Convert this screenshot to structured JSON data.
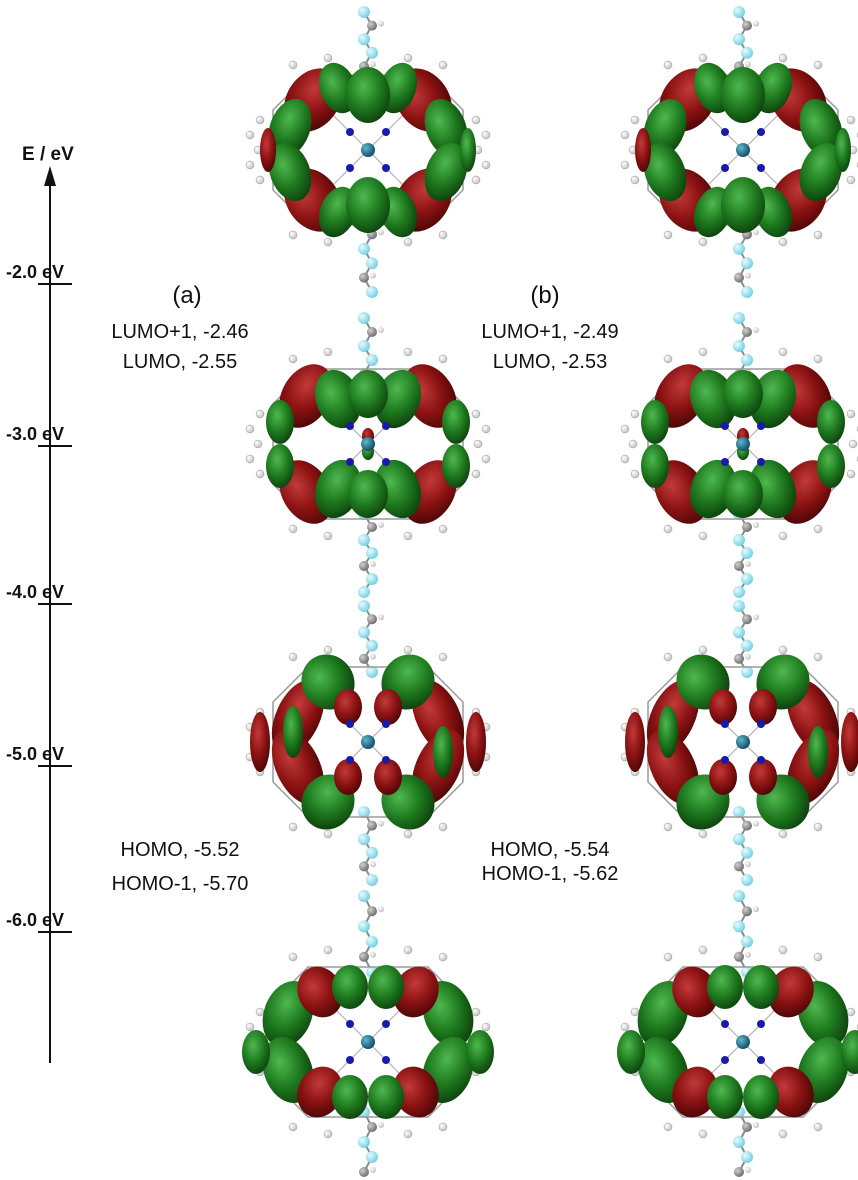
{
  "axis": {
    "title": "E / eV",
    "ticks": [
      "-2.0 eV",
      "-3.0 eV",
      "-4.0 eV",
      "-5.0 eV",
      "-6.0 eV"
    ]
  },
  "panels": [
    {
      "label": "(a)",
      "upper": [
        "LUMO+1, -2.46",
        "LUMO, -2.55"
      ],
      "lower": [
        "HOMO, -5.52",
        "HOMO-1, -5.70"
      ]
    },
    {
      "label": "(b)",
      "upper": [
        "LUMO+1, -2.49",
        "LUMO, -2.53"
      ],
      "lower": [
        "HOMO, -5.54",
        "HOMO-1, -5.62"
      ]
    }
  ],
  "colors": {
    "positive_lobe": "#1e7a1e",
    "negative_lobe": "#8b1212",
    "axis": "#111111",
    "fluorine": "#9be3ef",
    "carbon": "#8c8c8c",
    "hydrogen": "#f2f2f2",
    "nitrogen": "#1a1aa8",
    "metal": "#1c6e8a"
  },
  "orbitals": [
    "LUMO+1",
    "LUMO",
    "HOMO",
    "HOMO-1"
  ]
}
